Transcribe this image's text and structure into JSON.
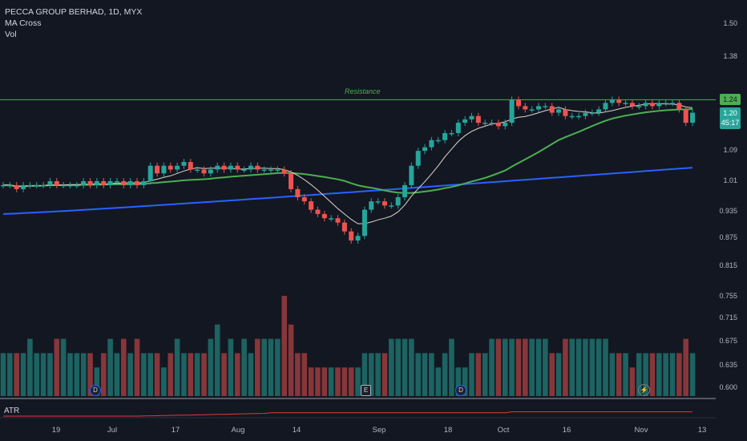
{
  "legend": {
    "symbol": "PECCA GROUP BERHAD, 1D, MYX",
    "study1": "MA Cross",
    "study2": "Vol"
  },
  "atr_label": "ATR",
  "resistance": {
    "label": "Resistance",
    "value": 1.24,
    "tag": "1.24"
  },
  "price_tag": {
    "price": "1.20",
    "countdown": "45:17"
  },
  "colors": {
    "background": "#131722",
    "up": "#26a69a",
    "down": "#ef5350",
    "ma_short": "#e0d6cc",
    "ma_mid": "#4caf50",
    "ma_long": "#2962ff",
    "atr": "#e53935"
  },
  "markers": [
    {
      "type": "D",
      "icon": "dividend-icon"
    },
    {
      "type": "E",
      "icon": "earnings-icon"
    },
    {
      "type": "D",
      "icon": "dividend-icon"
    },
    {
      "type": "flash",
      "icon": "lightning-icon"
    }
  ],
  "chart_data": {
    "type": "candlestick",
    "y_axis_ticks": [
      "1.50",
      "1.38",
      "1.24",
      "1.20",
      "1.09",
      "1.01",
      "0.935",
      "0.875",
      "0.815",
      "0.755",
      "0.715",
      "0.675",
      "0.635",
      "0.600"
    ],
    "y_axis_scale": "log",
    "x_axis_ticks": [
      "19",
      "Jul",
      "17",
      "Aug",
      "14",
      "Sep",
      "18",
      "Oct",
      "16",
      "Nov",
      "13"
    ],
    "close": [
      1.0,
      1.0,
      0.99,
      1.0,
      1.0,
      1.0,
      1.0,
      1.01,
      1.0,
      1.0,
      1.0,
      1.0,
      1.01,
      1.0,
      1.01,
      1.0,
      1.01,
      1.01,
      1.0,
      1.01,
      1.0,
      1.01,
      1.05,
      1.03,
      1.05,
      1.04,
      1.05,
      1.06,
      1.04,
      1.04,
      1.03,
      1.04,
      1.05,
      1.04,
      1.05,
      1.04,
      1.04,
      1.05,
      1.04,
      1.04,
      1.04,
      1.04,
      1.03,
      0.99,
      0.97,
      0.96,
      0.94,
      0.93,
      0.92,
      0.92,
      0.91,
      0.89,
      0.87,
      0.88,
      0.94,
      0.96,
      0.96,
      0.95,
      0.95,
      0.97,
      1.0,
      1.05,
      1.09,
      1.1,
      1.12,
      1.12,
      1.14,
      1.14,
      1.17,
      1.18,
      1.19,
      1.17,
      1.17,
      1.17,
      1.16,
      1.17,
      1.24,
      1.22,
      1.21,
      1.21,
      1.22,
      1.22,
      1.2,
      1.21,
      1.19,
      1.19,
      1.19,
      1.2,
      1.2,
      1.21,
      1.23,
      1.24,
      1.23,
      1.23,
      1.22,
      1.22,
      1.23,
      1.22,
      1.23,
      1.23,
      1.23,
      1.21,
      1.17,
      1.2
    ],
    "volume": [
      3,
      3,
      3,
      3,
      4,
      3,
      3,
      3,
      4,
      4,
      3,
      3,
      3,
      3,
      2,
      3,
      4,
      3,
      4,
      3,
      4,
      3,
      3,
      3,
      2,
      3,
      4,
      3,
      3,
      3,
      3,
      4,
      5,
      3,
      4,
      3,
      4,
      3,
      4,
      4,
      4,
      4,
      7,
      5,
      3,
      3,
      2,
      2,
      2,
      2,
      2,
      2,
      2,
      2,
      3,
      3,
      3,
      3,
      4,
      4,
      4,
      4,
      3,
      3,
      3,
      2,
      3,
      4,
      2,
      2,
      3,
      3,
      3,
      4,
      4,
      4,
      4,
      4,
      4,
      4,
      4,
      4,
      3,
      3,
      4,
      4,
      4,
      4,
      4,
      4,
      4,
      3,
      3,
      3,
      2,
      3,
      3,
      3,
      3,
      3,
      3,
      3,
      4,
      3
    ],
    "ma_lines": [
      {
        "name": "MA short",
        "color": "#e0d6cc"
      },
      {
        "name": "MA mid",
        "color": "#4caf50"
      },
      {
        "name": "MA long",
        "color": "#2962ff"
      }
    ]
  }
}
